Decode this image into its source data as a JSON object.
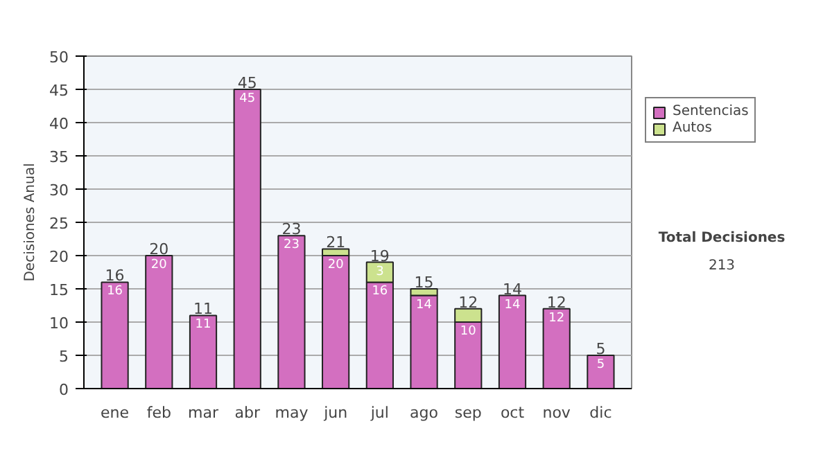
{
  "chart_data": {
    "type": "bar",
    "stacked": true,
    "ylabel": "Decisiones Anual",
    "categories": [
      "ene",
      "feb",
      "mar",
      "abr",
      "may",
      "jun",
      "jul",
      "ago",
      "sep",
      "oct",
      "nov",
      "dic"
    ],
    "series": [
      {
        "name": "Sentencias",
        "color": "#d36fc0",
        "values": [
          16,
          20,
          11,
          45,
          23,
          20,
          16,
          14,
          10,
          14,
          12,
          5
        ],
        "value_labels": [
          "16",
          "20",
          "11",
          "45",
          "23",
          "20",
          "16",
          "14",
          "10",
          "14",
          "12",
          "5"
        ]
      },
      {
        "name": "Autos",
        "color": "#cce28e",
        "values": [
          null,
          null,
          null,
          null,
          null,
          1,
          3,
          1,
          2,
          null,
          null,
          null
        ],
        "value_labels": [
          null,
          null,
          null,
          null,
          null,
          null,
          "3",
          null,
          null,
          null,
          null,
          null
        ]
      }
    ],
    "totals": [
      "16",
      "20",
      "11",
      "45",
      "23",
      "21",
      "19",
      "15",
      "12",
      "14",
      "12",
      "5"
    ],
    "ylim": [
      0,
      50
    ],
    "yticks": [
      0,
      5,
      10,
      15,
      20,
      25,
      30,
      35,
      40,
      45,
      50
    ],
    "grid": "y",
    "legend": "right",
    "annotations": [
      "Total Decisiones",
      "213"
    ]
  }
}
